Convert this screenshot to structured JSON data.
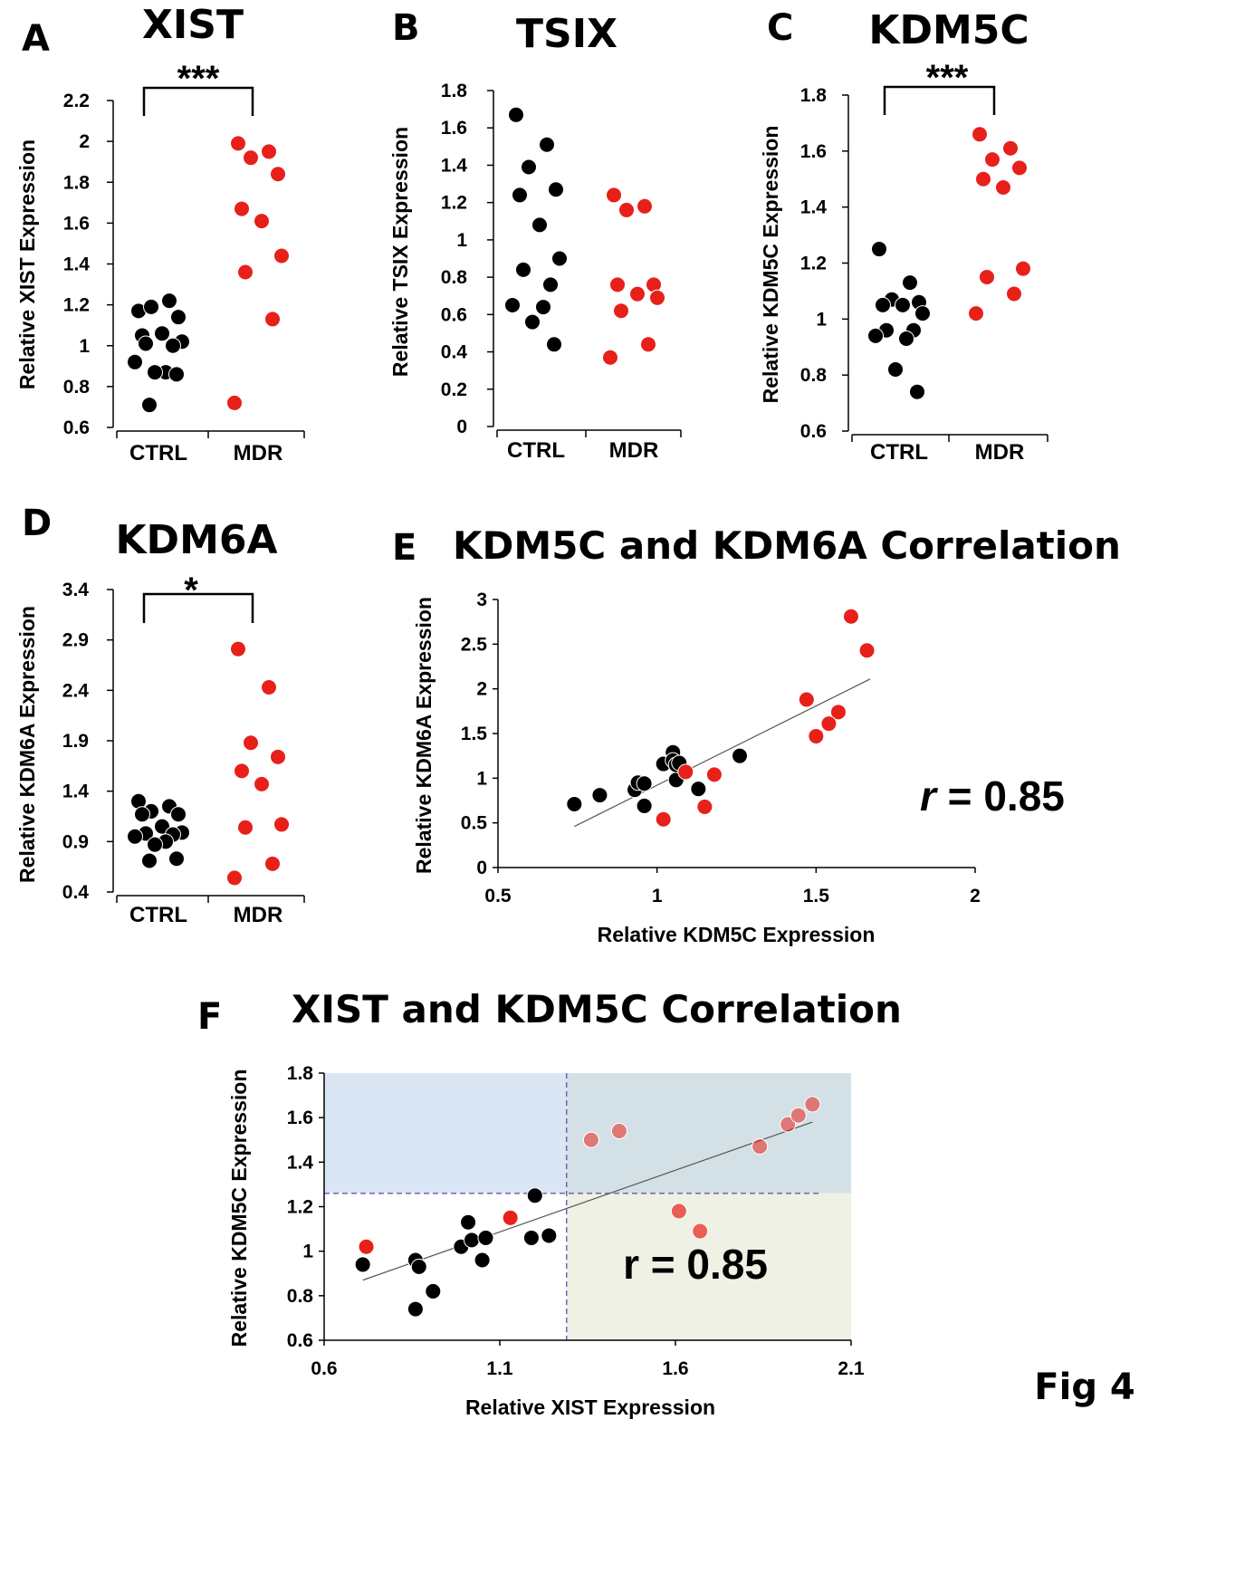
{
  "figure_label": "Fig 4",
  "colors": {
    "ctrl": "#000000",
    "mdr": "#e8201a",
    "quad_left": "#dae6f3",
    "quad_right": "#d3e1e6",
    "quad_bottom": "#eef1e3",
    "threshold": "#7b5fb8",
    "trend": "#555555"
  },
  "chart_data": [
    {
      "id": "A",
      "type": "scatter",
      "panel_label": "A",
      "title": "XIST",
      "ylabel": "Relative XIST Expression",
      "categories": [
        "CTRL",
        "MDR"
      ],
      "ylim": [
        0.6,
        2.2
      ],
      "yticks": [
        "0.6",
        "0.8",
        "1",
        "1.2",
        "1.4",
        "1.6",
        "1.8",
        "2",
        "2.2"
      ],
      "significance": "***",
      "series": [
        {
          "values": [
            1.17,
            1.22,
            1.19,
            1.14,
            1.05,
            1.06,
            1.02,
            1.01,
            1.0,
            0.92,
            0.87,
            0.87,
            0.86,
            0.71
          ]
        },
        {
          "values": [
            1.99,
            1.95,
            1.92,
            1.84,
            1.67,
            1.61,
            1.44,
            1.36,
            1.13,
            0.72
          ]
        }
      ]
    },
    {
      "id": "B",
      "type": "scatter",
      "panel_label": "B",
      "title": "TSIX",
      "ylabel": "Relative TSIX Expression",
      "categories": [
        "CTRL",
        "MDR"
      ],
      "ylim": [
        0,
        1.8
      ],
      "yticks": [
        "0",
        "0.2",
        "0.4",
        "0.6",
        "0.8",
        "1",
        "1.2",
        "1.4",
        "1.6",
        "1.8"
      ],
      "significance": "",
      "series": [
        {
          "values": [
            1.67,
            1.51,
            1.39,
            1.27,
            1.24,
            1.08,
            0.9,
            0.84,
            0.76,
            0.65,
            0.64,
            0.56,
            0.44
          ]
        },
        {
          "values": [
            1.24,
            1.18,
            1.16,
            0.76,
            0.76,
            0.71,
            0.69,
            0.62,
            0.44,
            0.37
          ]
        }
      ]
    },
    {
      "id": "C",
      "type": "scatter",
      "panel_label": "C",
      "title": "KDM5C",
      "ylabel": "Relative KDM5C Expression",
      "categories": [
        "CTRL",
        "MDR"
      ],
      "ylim": [
        0.6,
        1.8
      ],
      "yticks": [
        "0.6",
        "0.8",
        "1",
        "1.2",
        "1.4",
        "1.6",
        "1.8"
      ],
      "significance": "***",
      "series": [
        {
          "values": [
            1.25,
            1.13,
            1.07,
            1.06,
            1.05,
            1.05,
            1.02,
            0.96,
            0.96,
            0.94,
            0.93,
            0.82,
            0.74
          ]
        },
        {
          "values": [
            1.66,
            1.61,
            1.57,
            1.54,
            1.5,
            1.47,
            1.18,
            1.15,
            1.09,
            1.02
          ]
        }
      ]
    },
    {
      "id": "D",
      "type": "scatter",
      "panel_label": "D",
      "title": "KDM6A",
      "ylabel": "Relative KDM6A Expression",
      "categories": [
        "CTRL",
        "MDR"
      ],
      "ylim": [
        0.4,
        3.4
      ],
      "yticks": [
        "0.4",
        "0.9",
        "1.4",
        "1.9",
        "2.4",
        "2.9",
        "3.4"
      ],
      "significance": "*",
      "series": [
        {
          "values": [
            1.3,
            1.25,
            1.2,
            1.17,
            1.17,
            1.05,
            0.99,
            0.98,
            0.97,
            0.95,
            0.9,
            0.87,
            0.73,
            0.71
          ]
        },
        {
          "values": [
            2.81,
            2.43,
            1.88,
            1.74,
            1.6,
            1.47,
            1.07,
            1.04,
            0.68,
            0.54
          ]
        }
      ]
    },
    {
      "id": "E",
      "type": "scatter",
      "panel_label": "E",
      "title": "KDM5C and KDM6A Correlation",
      "xlabel": "Relative KDM5C Expression",
      "ylabel": "Relative KDM6A Expression",
      "xlim": [
        0.5,
        2
      ],
      "ylim": [
        0,
        3
      ],
      "xticks": [
        "0.5",
        "1",
        "1.5",
        "2"
      ],
      "yticks": [
        "0",
        "0.5",
        "1",
        "1.5",
        "2",
        "2.5",
        "3"
      ],
      "r_label": "= 0.85",
      "r_symbol": "r",
      "trendline": [
        [
          0.74,
          0.46
        ],
        [
          1.67,
          2.11
        ]
      ],
      "series": [
        {
          "points": [
            [
              0.74,
              0.71
            ],
            [
              0.82,
              0.81
            ],
            [
              0.93,
              0.87
            ],
            [
              0.94,
              0.95
            ],
            [
              0.96,
              0.94
            ],
            [
              0.96,
              0.69
            ],
            [
              1.02,
              1.16
            ],
            [
              1.05,
              1.29
            ],
            [
              1.05,
              1.2
            ],
            [
              1.06,
              0.98
            ],
            [
              1.06,
              1.15
            ],
            [
              1.07,
              1.17
            ],
            [
              1.13,
              0.88
            ],
            [
              1.26,
              1.25
            ]
          ]
        },
        {
          "points": [
            [
              1.61,
              2.81
            ],
            [
              1.66,
              2.43
            ],
            [
              1.47,
              1.88
            ],
            [
              1.57,
              1.74
            ],
            [
              1.54,
              1.61
            ],
            [
              1.5,
              1.47
            ],
            [
              1.09,
              1.07
            ],
            [
              1.18,
              1.04
            ],
            [
              1.15,
              0.68
            ],
            [
              1.02,
              0.54
            ]
          ]
        }
      ]
    },
    {
      "id": "F",
      "type": "scatter",
      "panel_label": "F",
      "title": "XIST and KDM5C Correlation",
      "xlabel": "Relative XIST Expression",
      "ylabel": "Relative KDM5C Expression",
      "xlim": [
        0.6,
        2.1
      ],
      "ylim": [
        0.6,
        1.8
      ],
      "xticks": [
        "0.6",
        "1.1",
        "1.6",
        "2.1"
      ],
      "yticks": [
        "0.6",
        "0.8",
        "1",
        "1.2",
        "1.4",
        "1.6",
        "1.8"
      ],
      "r_label": "r = 0.85",
      "trendline": [
        [
          0.71,
          0.87
        ],
        [
          1.99,
          1.58
        ]
      ],
      "threshold_x": 1.29,
      "threshold_y": 1.26,
      "series": [
        {
          "points": [
            [
              0.71,
              0.94
            ],
            [
              0.86,
              0.96
            ],
            [
              0.86,
              0.74
            ],
            [
              0.87,
              0.93
            ],
            [
              0.91,
              0.82
            ],
            [
              0.99,
              1.02
            ],
            [
              1.01,
              1.13
            ],
            [
              1.02,
              1.05
            ],
            [
              1.05,
              0.96
            ],
            [
              1.06,
              1.06
            ],
            [
              1.19,
              1.06
            ],
            [
              1.2,
              1.25
            ],
            [
              1.24,
              1.07
            ]
          ]
        },
        {
          "points": [
            [
              0.72,
              1.02
            ],
            [
              1.13,
              1.15
            ],
            [
              1.36,
              1.5
            ],
            [
              1.44,
              1.54
            ],
            [
              1.61,
              1.18
            ],
            [
              1.67,
              1.09
            ],
            [
              1.84,
              1.47
            ],
            [
              1.92,
              1.57
            ],
            [
              1.95,
              1.61
            ],
            [
              1.99,
              1.66
            ]
          ]
        }
      ]
    }
  ]
}
